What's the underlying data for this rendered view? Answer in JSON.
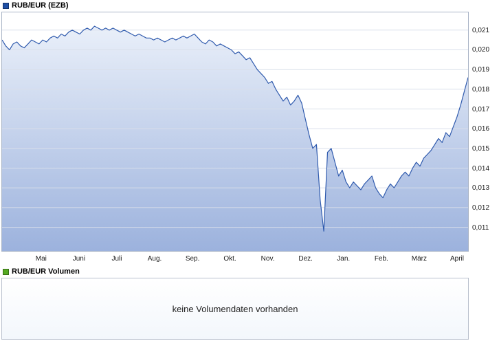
{
  "price_panel": {
    "legend": "RUB/EUR (EZB)"
  },
  "volume_panel": {
    "legend": "RUB/EUR Volumen",
    "message": "keine Volumendaten vorhanden"
  },
  "chart_data": {
    "type": "area",
    "title": "RUB/EUR (EZB)",
    "series_name": "RUB/EUR",
    "x_labels": [
      "Mai",
      "Juni",
      "Juli",
      "Aug.",
      "Sep.",
      "Okt.",
      "Nov.",
      "Dez.",
      "Jan.",
      "Feb.",
      "März",
      "April"
    ],
    "x_label_positions": [
      0.085,
      0.166,
      0.247,
      0.328,
      0.409,
      0.489,
      0.57,
      0.651,
      0.732,
      0.813,
      0.894,
      0.975
    ],
    "yticks": [
      0.011,
      0.012,
      0.013,
      0.014,
      0.015,
      0.016,
      0.017,
      0.018,
      0.019,
      0.02,
      0.021
    ],
    "ylim": [
      0.0098,
      0.0219
    ],
    "grid": "horizontal-only",
    "legend_position": "top-left",
    "values": [
      0.0205,
      0.0202,
      0.02,
      0.0203,
      0.0204,
      0.0202,
      0.0201,
      0.0203,
      0.0205,
      0.0204,
      0.0203,
      0.0205,
      0.0204,
      0.0206,
      0.0207,
      0.0206,
      0.0208,
      0.0207,
      0.0209,
      0.021,
      0.0209,
      0.0208,
      0.021,
      0.0211,
      0.021,
      0.0212,
      0.0211,
      0.021,
      0.0211,
      0.021,
      0.0211,
      0.021,
      0.0209,
      0.021,
      0.0209,
      0.0208,
      0.0207,
      0.0208,
      0.0207,
      0.0206,
      0.0206,
      0.0205,
      0.0206,
      0.0205,
      0.0204,
      0.0205,
      0.0206,
      0.0205,
      0.0206,
      0.0207,
      0.0206,
      0.0207,
      0.0208,
      0.0206,
      0.0204,
      0.0203,
      0.0205,
      0.0204,
      0.0202,
      0.0203,
      0.0202,
      0.0201,
      0.02,
      0.0198,
      0.0199,
      0.0197,
      0.0195,
      0.0196,
      0.0193,
      0.019,
      0.0188,
      0.0186,
      0.0183,
      0.0184,
      0.018,
      0.0177,
      0.0174,
      0.0176,
      0.0172,
      0.0174,
      0.0177,
      0.0173,
      0.0165,
      0.0157,
      0.015,
      0.0152,
      0.0124,
      0.0108,
      0.0148,
      0.015,
      0.0143,
      0.0136,
      0.0139,
      0.0133,
      0.013,
      0.0133,
      0.0131,
      0.0129,
      0.0132,
      0.0134,
      0.0136,
      0.013,
      0.0127,
      0.0125,
      0.0129,
      0.0132,
      0.013,
      0.0133,
      0.0136,
      0.0138,
      0.0136,
      0.014,
      0.0143,
      0.0141,
      0.0145,
      0.0147,
      0.0149,
      0.0152,
      0.0155,
      0.0153,
      0.0158,
      0.0156,
      0.0161,
      0.0166,
      0.0172,
      0.0179,
      0.0186
    ],
    "colors": {
      "line": "#2f5aad",
      "area_top": "#eef3fb",
      "area_bottom": "#9cb2dd",
      "grid": "#d9dfea",
      "price_swatch": "#1f4fa5",
      "volume_swatch": "#55aa22"
    }
  }
}
